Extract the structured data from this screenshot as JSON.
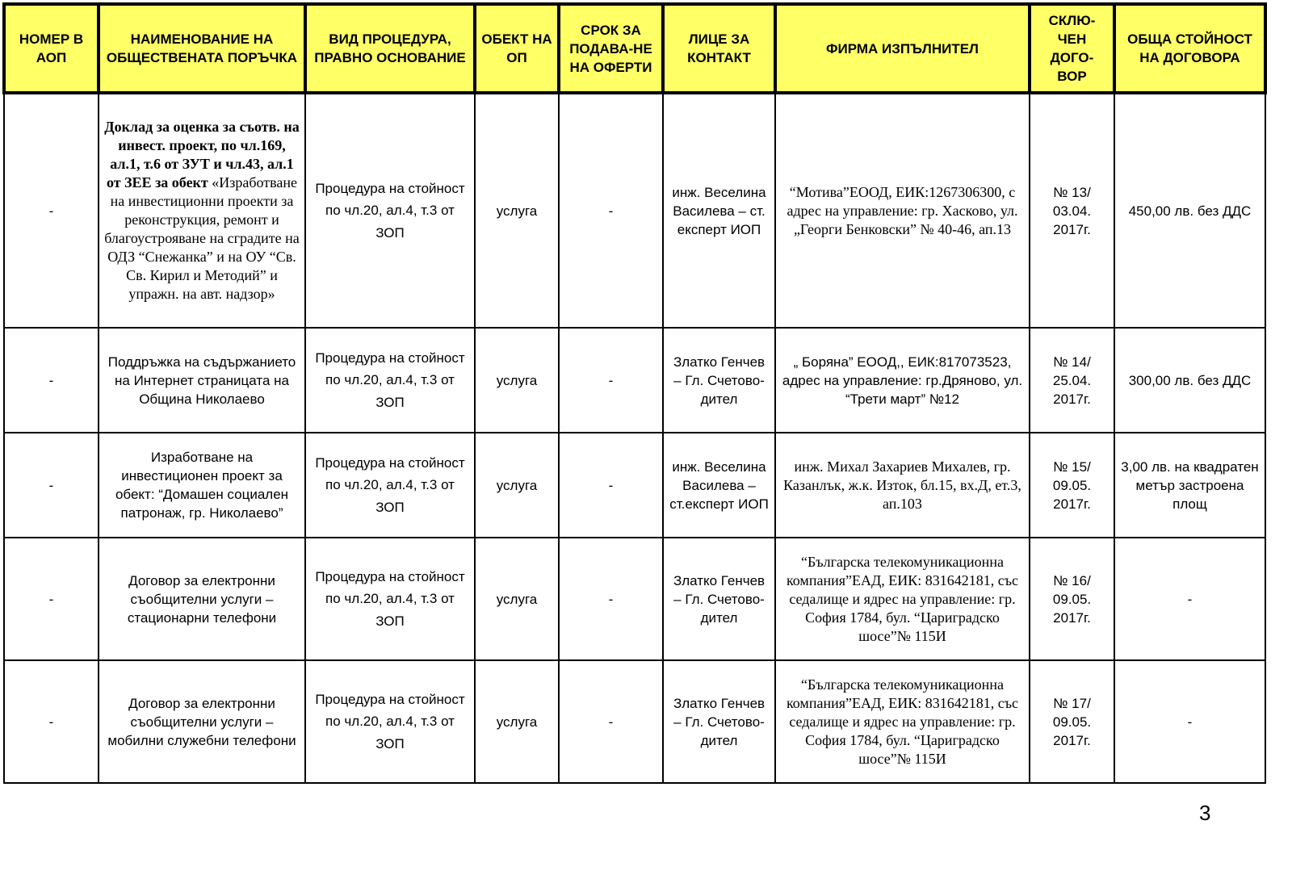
{
  "headers": [
    "НОМЕР В АОП",
    "НАИМЕНОВАНИЕ НА ОБЩЕСТВЕНАТА ПОРЪЧКА",
    "ВИД ПРОЦЕДУРА, ПРАВНО ОСНОВАНИЕ",
    "ОБЕКТ НА ОП",
    "СРОК ЗА ПОДАВА-НЕ НА ОФЕРТИ",
    "ЛИЦЕ ЗА КОНТАКТ",
    "ФИРМА ИЗПЪЛНИТЕЛ",
    "СКЛЮ-ЧЕН ДОГО-ВОР",
    "ОБЩА СТОЙНОСТ НА ДОГОВОРА"
  ],
  "rows": [
    {
      "aop": "-",
      "name_bold": "Доклад за оценка за съотв. на инвест. проект, по чл.169, ал.1, т.6 от ЗУТ и чл.43, ал.1 от ЗЕЕ за обект",
      "name": "«Изработване на инвестиционни проекти за реконструкция, ремонт и благоустрояване на сградите на ОДЗ “Снежанка” и  на ОУ “Св. Св. Кирил и Методий” и упражн. на авт. надзор»",
      "procedure": "Процедура на стойност по чл.20, ал.4, т.3 от ЗОП",
      "object": "услуга",
      "deadline": "-",
      "contact": "инж. Веселина Василева – ст. експерт ИОП",
      "firm": "“Мотива”ЕООД, ЕИК:1267306300, с адрес на управление: гр. Хасково, ул. „Георги Бенковски” № 40-46, ап.13",
      "contract": "№ 13/ 03.04. 2017г.",
      "value": "450,00 лв. без ДДС"
    },
    {
      "aop": "-",
      "name_bold": "",
      "name": "Поддръжка на съдържанието на Интернет страницата на Община Николаево",
      "procedure": "Процедура на стойност по чл.20, ал.4, т.3 от ЗОП",
      "object": "услуга",
      "deadline": "-",
      "contact": "Златко Генчев – Гл. Счетово-дител",
      "firm": "„ Боряна” ЕООД,, ЕИК:817073523, адрес на управление: гр.Дряново, ул. “Трети март” №12",
      "contract": "№ 14/ 25.04. 2017г.",
      "value": "300,00 лв. без ДДС"
    },
    {
      "aop": "-",
      "name_bold": "",
      "name": "Изработване на инвестиционен проект за обект: “Домашен социален патронаж, гр. Николаево”",
      "procedure": "Процедура на стойност по чл.20, ал.4, т.3 от ЗОП",
      "object": "услуга",
      "deadline": "-",
      "contact": "инж. Веселина Василева – ст.експерт ИОП",
      "firm": "инж. Михал Захариев Михалев, гр. Казанлък, ж.к. Изток, бл.15, вх.Д, ет.3, ап.103",
      "contract": "№ 15/ 09.05. 2017г.",
      "value": "3,00 лв. на квадратен метър застроена площ"
    },
    {
      "aop": "-",
      "name_bold": "",
      "name": "Договор за електронни съобщителни услуги – стационарни телефони",
      "procedure": "Процедура на стойност по чл.20, ал.4, т.3 от ЗОП",
      "object": "услуга",
      "deadline": "-",
      "contact": "Златко Генчев – Гл. Счетово-дител",
      "firm": "“Българска телекомуникационна компания”ЕАД, ЕИК: 831642181, със седалище и ядрес на управление: гр. София 1784, бул. “Цариградско шосе”№ 115И",
      "contract": "№ 16/ 09.05. 2017г.",
      "value": "-"
    },
    {
      "aop": "-",
      "name_bold": "",
      "name": "Договор за електронни съобщителни услуги – мобилни служебни телефони",
      "procedure": "Процедура на стойност по чл.20, ал.4, т.3 от ЗОП",
      "object": "услуга",
      "deadline": "-",
      "contact": "Златко Генчев – Гл. Счетово-дител",
      "firm": "“Българска телекомуникационна компания”ЕАД, ЕИК: 831642181, със седалище и ядрес на управление: гр. София 1784, бул. “Цариградско шосе”№ 115И",
      "contract": "№ 17/ 09.05. 2017г.",
      "value": "-"
    }
  ],
  "page_number": "3",
  "colors": {
    "header_bg": "#ffff66"
  }
}
